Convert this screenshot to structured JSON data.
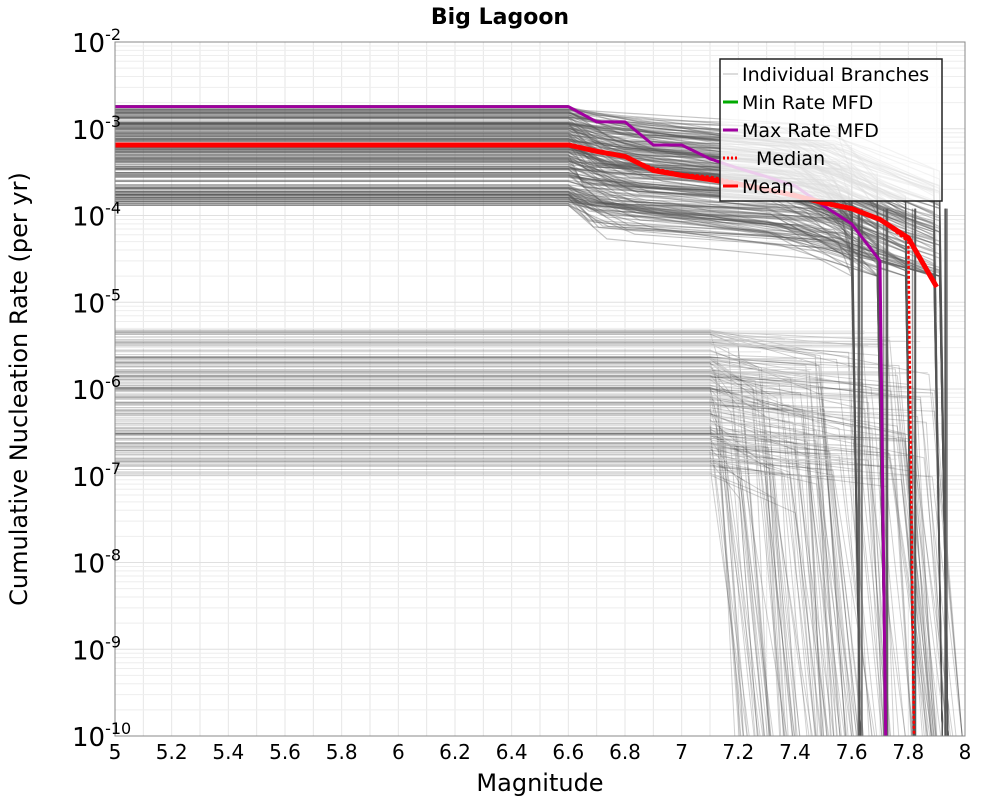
{
  "chart_data": {
    "type": "line",
    "title": "Big Lagoon",
    "xlabel": "Magnitude",
    "ylabel": "Cumulative Nucleation Rate (per yr)",
    "xlim": [
      5,
      8
    ],
    "ylim": [
      1e-10,
      0.01
    ],
    "yscale": "log",
    "grid": true,
    "legend_position": "top-right",
    "x_ticks": [
      "5",
      "5.2",
      "5.4",
      "5.6",
      "5.8",
      "6",
      "6.2",
      "6.4",
      "6.6",
      "6.8",
      "7",
      "7.2",
      "7.4",
      "7.6",
      "7.8",
      "8"
    ],
    "y_ticks": [
      {
        "base": "10",
        "exp": "-2",
        "value": 0.01
      },
      {
        "base": "10",
        "exp": "-3",
        "value": 0.001
      },
      {
        "base": "10",
        "exp": "-4",
        "value": 0.0001
      },
      {
        "base": "10",
        "exp": "-5",
        "value": 1e-05
      },
      {
        "base": "10",
        "exp": "-6",
        "value": 1e-06
      },
      {
        "base": "10",
        "exp": "-7",
        "value": 1e-07
      },
      {
        "base": "10",
        "exp": "-8",
        "value": 1e-08
      },
      {
        "base": "10",
        "exp": "-9",
        "value": 1e-09
      },
      {
        "base": "10",
        "exp": "-10",
        "value": 1e-10
      }
    ],
    "legend": [
      {
        "label": "Individual Branches",
        "color": "#d0d0d0",
        "style": "solid"
      },
      {
        "label": "Min Rate MFD",
        "color": "#00aa00",
        "style": "solid"
      },
      {
        "label": "Max Rate MFD",
        "color": "#a000a0",
        "style": "solid"
      },
      {
        "label": "Median",
        "color": "#ff0000",
        "style": "dotted"
      },
      {
        "label": "Mean",
        "color": "#ff0000",
        "style": "solid"
      }
    ],
    "branches": {
      "description_band_high": [
        0.00013,
        0.0018
      ],
      "description_band_low": [
        1e-07,
        5e-06
      ],
      "color": "#555555"
    },
    "series": [
      {
        "name": "Min Rate MFD",
        "color": "#00aa00",
        "x": [
          5.0,
          6.6
        ],
        "y": [
          0.0018,
          0.0018
        ]
      },
      {
        "name": "Max Rate MFD",
        "color": "#a000a0",
        "x": [
          5.0,
          6.6,
          6.7,
          6.8,
          6.9,
          7.0,
          7.1,
          7.2,
          7.3,
          7.4,
          7.5,
          7.6,
          7.7,
          7.72
        ],
        "y": [
          0.0018,
          0.0018,
          0.0012,
          0.0012,
          0.00065,
          0.00065,
          0.00045,
          0.00035,
          0.00028,
          0.00022,
          0.00013,
          8e-05,
          3e-05,
          1e-10
        ]
      },
      {
        "name": "Median",
        "color": "#ff0000",
        "x": [
          5.0,
          6.6,
          6.7,
          6.8,
          6.9,
          7.0,
          7.1,
          7.2,
          7.3,
          7.4,
          7.5,
          7.6,
          7.7,
          7.8,
          7.82
        ],
        "y": [
          0.00065,
          0.00065,
          0.00055,
          0.00048,
          0.00035,
          0.0003,
          0.00028,
          0.00024,
          0.0002,
          0.00017,
          0.00014,
          0.00012,
          9e-05,
          5e-05,
          1e-10
        ]
      },
      {
        "name": "Mean",
        "color": "#ff0000",
        "x": [
          5.0,
          6.6,
          6.7,
          6.8,
          6.9,
          7.0,
          7.1,
          7.2,
          7.3,
          7.4,
          7.5,
          7.6,
          7.7,
          7.8,
          7.9
        ],
        "y": [
          0.00065,
          0.00065,
          0.00055,
          0.00048,
          0.00033,
          0.00029,
          0.00026,
          0.00023,
          0.0002,
          0.00017,
          0.00014,
          0.00012,
          9e-05,
          5.5e-05,
          1.5e-05
        ]
      }
    ]
  }
}
